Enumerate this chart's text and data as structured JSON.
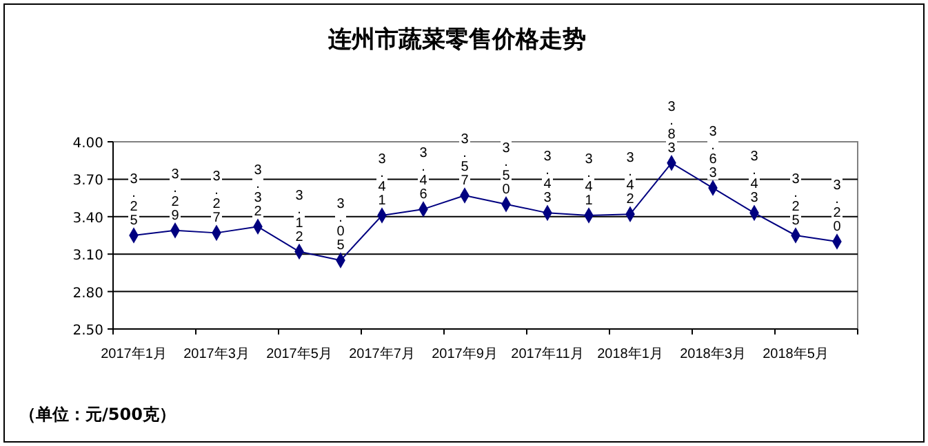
{
  "chart_data": {
    "type": "line",
    "title": "连州市蔬菜零售价格走势",
    "categories": [
      "2017年1月",
      null,
      "2017年3月",
      null,
      "2017年5月",
      null,
      "2017年7月",
      null,
      "2017年9月",
      null,
      "2017年11月",
      null,
      "2018年1月",
      null,
      "2018年3月",
      null,
      "2018年5月",
      null
    ],
    "series": [
      {
        "color": "#000080",
        "values": [
          3.25,
          3.29,
          3.27,
          3.32,
          3.12,
          3.05,
          3.41,
          3.46,
          3.57,
          3.5,
          3.43,
          3.41,
          3.42,
          3.83,
          3.63,
          3.43,
          3.25,
          3.2
        ],
        "value_labels": [
          "3.25",
          "3.29",
          "3.27",
          "3.32",
          "3.12",
          "3.05",
          "3.41",
          "3.46",
          "3.57",
          "3.50",
          "3.43",
          "3.41",
          "3.42",
          "3.83",
          "3.63",
          "3.43",
          "3.25",
          "3.20"
        ]
      }
    ],
    "ylim": [
      2.5,
      4.0
    ],
    "yticks": [
      {
        "value": 2.5,
        "label": "2.50"
      },
      {
        "value": 2.8,
        "label": "2.80"
      },
      {
        "value": 3.1,
        "label": "3.10"
      },
      {
        "value": 3.4,
        "label": "3.40"
      },
      {
        "value": 3.7,
        "label": "3.70"
      },
      {
        "value": 4.0,
        "label": "4.00"
      }
    ],
    "grid": "y",
    "marker": "diamond",
    "line_style": "solid",
    "annotations": [
      "（单位：元/500克）"
    ]
  }
}
